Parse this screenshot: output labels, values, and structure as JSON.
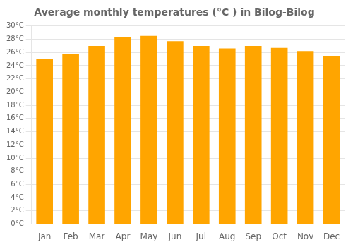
{
  "chart_data": {
    "type": "bar",
    "title": "Average monthly temperatures (°C ) in Bilog-Bilog",
    "categories": [
      "Jan",
      "Feb",
      "Mar",
      "Apr",
      "May",
      "Jun",
      "Jul",
      "Aug",
      "Sep",
      "Oct",
      "Nov",
      "Dec"
    ],
    "values": [
      25.0,
      25.8,
      27.0,
      28.3,
      28.5,
      27.7,
      27.0,
      26.6,
      27.0,
      26.7,
      26.2,
      25.5
    ],
    "color": "#FFA500",
    "ylim": [
      0,
      30
    ],
    "yticks": [
      {
        "value": 0,
        "label": "0°C"
      },
      {
        "value": 2,
        "label": "2°C"
      },
      {
        "value": 4,
        "label": "4°C"
      },
      {
        "value": 6,
        "label": "6°C"
      },
      {
        "value": 8,
        "label": "8°C"
      },
      {
        "value": 10,
        "label": "10°C"
      },
      {
        "value": 12,
        "label": "12°C"
      },
      {
        "value": 14,
        "label": "14°C"
      },
      {
        "value": 16,
        "label": "16°C"
      },
      {
        "value": 18,
        "label": "18°C"
      },
      {
        "value": 20,
        "label": "20°C"
      },
      {
        "value": 22,
        "label": "22°C"
      },
      {
        "value": 24,
        "label": "24°C"
      },
      {
        "value": 26,
        "label": "26°C"
      },
      {
        "value": 28,
        "label": "28°C"
      },
      {
        "value": 30,
        "label": "30°C"
      }
    ],
    "grid": true
  }
}
